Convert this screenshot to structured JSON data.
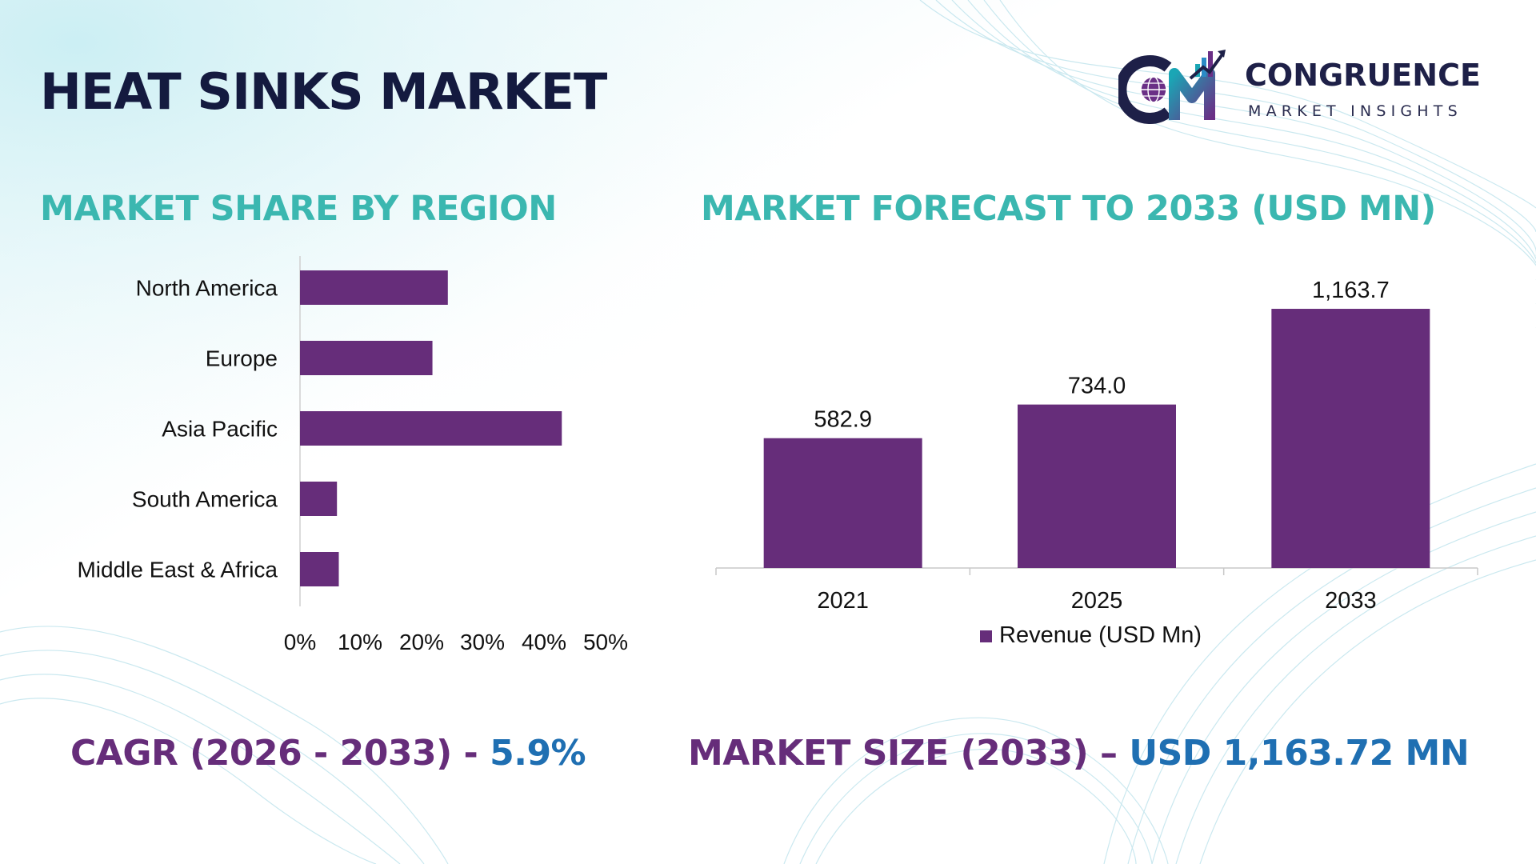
{
  "header": {
    "title": "HEAT SINKS MARKET",
    "logo": {
      "brand": "CONGRUENCE",
      "tagline": "MARKET INSIGHTS",
      "icon": "cm-globe-chart-logo-icon"
    }
  },
  "colors": {
    "title": "#141a3f",
    "section_title": "#3bb7b0",
    "bar": "#662d7a",
    "kpi_label": "#662d7a",
    "kpi_value": "#1f6fb2"
  },
  "region_chart": {
    "title": "MARKET SHARE BY REGION"
  },
  "forecast_chart": {
    "title": "MARKET FORECAST TO 2033 (USD MN)"
  },
  "chart_data": [
    {
      "type": "bar",
      "orientation": "horizontal",
      "title": "MARKET SHARE BY REGION",
      "categories": [
        "North America",
        "Europe",
        "Asia Pacific",
        "South America",
        "Middle East & Africa"
      ],
      "values": [
        24,
        21.5,
        42.5,
        6,
        6.3
      ],
      "unit": "%",
      "xlim": [
        0,
        50
      ],
      "xticks": [
        "0%",
        "10%",
        "20%",
        "30%",
        "40%",
        "50%"
      ],
      "legend": null,
      "grid": false
    },
    {
      "type": "bar",
      "orientation": "vertical",
      "title": "MARKET FORECAST TO 2033 (USD MN)",
      "categories": [
        "2021",
        "2025",
        "2033"
      ],
      "series": [
        {
          "name": "Revenue (USD Mn)",
          "values": [
            582.9,
            734.0,
            1163.7
          ],
          "labels": [
            "582.9",
            "734.0",
            "1,163.7"
          ]
        }
      ],
      "ylim": [
        0,
        1250
      ],
      "legend": "bottom",
      "grid": false
    }
  ],
  "kpis": {
    "cagr_label": "CAGR (2026 - 2033) - ",
    "cagr_value": "5.9%",
    "size_label": "MARKET SIZE (2033) – ",
    "size_value": "USD 1,163.72 MN"
  }
}
